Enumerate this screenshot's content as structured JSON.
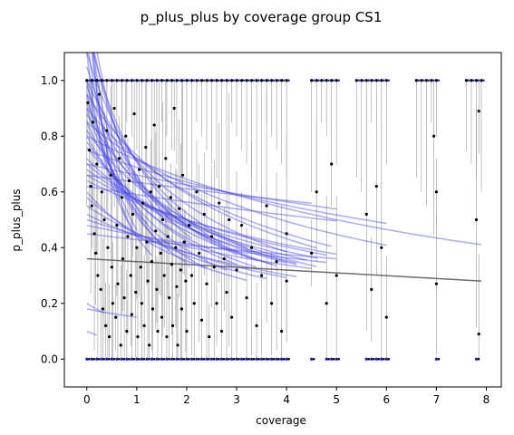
{
  "chart_data": {
    "type": "scatter",
    "title": "p_plus_plus by coverage group CS1",
    "xlabel": "coverage",
    "ylabel": "p_plus_plus",
    "xlim": [
      -0.45,
      8.3
    ],
    "ylim": [
      -0.1,
      1.1
    ],
    "x_ticks": [
      0,
      1,
      2,
      3,
      4,
      5,
      6,
      7,
      8
    ],
    "y_ticks": [
      0.0,
      0.2,
      0.4,
      0.6,
      0.8,
      1.0
    ],
    "grid": false,
    "legend": "none",
    "colors": {
      "points": "#000000",
      "error_bars": "#999999",
      "fit_lines": "#4444ee",
      "zero_markers": "#1a1acc",
      "reference_line": "#555555"
    },
    "reference_line": {
      "x": [
        0.0,
        7.9
      ],
      "y": [
        0.36,
        0.28
      ]
    },
    "points_at_one_x": [
      0.0,
      0.1,
      0.2,
      0.3,
      0.4,
      0.5,
      0.6,
      0.7,
      0.8,
      0.9,
      1.0,
      1.1,
      1.2,
      1.3,
      1.4,
      1.5,
      1.6,
      1.7,
      1.8,
      1.9,
      2.0,
      2.1,
      2.2,
      2.3,
      2.4,
      2.5,
      2.6,
      2.7,
      2.8,
      2.9,
      3.0,
      3.1,
      3.2,
      3.3,
      3.4,
      3.5,
      3.6,
      3.7,
      3.8,
      3.9,
      4.0,
      4.5,
      4.6,
      4.7,
      4.8,
      4.9,
      5.0,
      5.4,
      5.5,
      5.6,
      5.7,
      5.8,
      5.9,
      6.0,
      6.6,
      6.7,
      6.8,
      6.9,
      7.0,
      7.6,
      7.7,
      7.8,
      7.9
    ],
    "points_at_zero_x": [
      0.0,
      0.1,
      0.2,
      0.3,
      0.4,
      0.5,
      0.6,
      0.7,
      0.8,
      0.9,
      1.0,
      1.1,
      1.2,
      1.3,
      1.4,
      1.5,
      1.6,
      1.7,
      1.8,
      1.9,
      2.0,
      2.1,
      2.2,
      2.3,
      2.4,
      2.5,
      2.6,
      2.7,
      2.8,
      2.9,
      3.0,
      3.1,
      3.2,
      3.3,
      3.4,
      3.5,
      3.6,
      3.7,
      3.8,
      3.9,
      4.0,
      4.5,
      4.8,
      4.9,
      5.0,
      5.6,
      5.7,
      5.8,
      5.9,
      6.0,
      7.0,
      7.8
    ],
    "scatter_points": [
      {
        "x": 0.02,
        "y": 0.92
      },
      {
        "x": 0.05,
        "y": 0.75
      },
      {
        "x": 0.08,
        "y": 0.62
      },
      {
        "x": 0.1,
        "y": 0.55
      },
      {
        "x": 0.12,
        "y": 0.85
      },
      {
        "x": 0.15,
        "y": 0.45
      },
      {
        "x": 0.18,
        "y": 0.38
      },
      {
        "x": 0.2,
        "y": 0.7
      },
      {
        "x": 0.22,
        "y": 0.3
      },
      {
        "x": 0.25,
        "y": 0.95
      },
      {
        "x": 0.28,
        "y": 0.25
      },
      {
        "x": 0.3,
        "y": 0.6
      },
      {
        "x": 0.32,
        "y": 0.18
      },
      {
        "x": 0.35,
        "y": 0.5
      },
      {
        "x": 0.38,
        "y": 0.12
      },
      {
        "x": 0.4,
        "y": 0.82
      },
      {
        "x": 0.42,
        "y": 0.4
      },
      {
        "x": 0.45,
        "y": 0.08
      },
      {
        "x": 0.48,
        "y": 0.66
      },
      {
        "x": 0.5,
        "y": 0.33
      },
      {
        "x": 0.52,
        "y": 0.2
      },
      {
        "x": 0.55,
        "y": 0.9
      },
      {
        "x": 0.58,
        "y": 0.15
      },
      {
        "x": 0.6,
        "y": 0.48
      },
      {
        "x": 0.62,
        "y": 0.27
      },
      {
        "x": 0.65,
        "y": 0.72
      },
      {
        "x": 0.68,
        "y": 0.05
      },
      {
        "x": 0.7,
        "y": 0.58
      },
      {
        "x": 0.72,
        "y": 0.36
      },
      {
        "x": 0.75,
        "y": 0.22
      },
      {
        "x": 0.78,
        "y": 0.8
      },
      {
        "x": 0.8,
        "y": 0.1
      },
      {
        "x": 0.82,
        "y": 0.44
      },
      {
        "x": 0.85,
        "y": 0.64
      },
      {
        "x": 0.88,
        "y": 0.3
      },
      {
        "x": 0.9,
        "y": 0.16
      },
      {
        "x": 0.92,
        "y": 0.52
      },
      {
        "x": 0.95,
        "y": 0.88
      },
      {
        "x": 0.98,
        "y": 0.24
      },
      {
        "x": 1.0,
        "y": 0.4
      },
      {
        "x": 1.02,
        "y": 0.08
      },
      {
        "x": 1.05,
        "y": 0.68
      },
      {
        "x": 1.08,
        "y": 0.33
      },
      {
        "x": 1.1,
        "y": 0.2
      },
      {
        "x": 1.12,
        "y": 0.56
      },
      {
        "x": 1.15,
        "y": 0.12
      },
      {
        "x": 1.18,
        "y": 0.76
      },
      {
        "x": 1.2,
        "y": 0.42
      },
      {
        "x": 1.22,
        "y": 0.28
      },
      {
        "x": 1.25,
        "y": 0.05
      },
      {
        "x": 1.28,
        "y": 0.6
      },
      {
        "x": 1.3,
        "y": 0.35
      },
      {
        "x": 1.32,
        "y": 0.18
      },
      {
        "x": 1.35,
        "y": 0.84
      },
      {
        "x": 1.38,
        "y": 0.46
      },
      {
        "x": 1.4,
        "y": 0.25
      },
      {
        "x": 1.42,
        "y": 0.1
      },
      {
        "x": 1.45,
        "y": 0.62
      },
      {
        "x": 1.48,
        "y": 0.38
      },
      {
        "x": 1.5,
        "y": 0.15
      },
      {
        "x": 1.52,
        "y": 0.5
      },
      {
        "x": 1.55,
        "y": 0.3
      },
      {
        "x": 1.58,
        "y": 0.72
      },
      {
        "x": 1.6,
        "y": 0.08
      },
      {
        "x": 1.62,
        "y": 0.44
      },
      {
        "x": 1.65,
        "y": 0.22
      },
      {
        "x": 1.68,
        "y": 0.58
      },
      {
        "x": 1.7,
        "y": 0.34
      },
      {
        "x": 1.72,
        "y": 0.12
      },
      {
        "x": 1.75,
        "y": 0.9
      },
      {
        "x": 1.78,
        "y": 0.4
      },
      {
        "x": 1.8,
        "y": 0.26
      },
      {
        "x": 1.82,
        "y": 0.05
      },
      {
        "x": 1.85,
        "y": 0.54
      },
      {
        "x": 1.88,
        "y": 0.32
      },
      {
        "x": 1.9,
        "y": 0.18
      },
      {
        "x": 1.92,
        "y": 0.66
      },
      {
        "x": 1.95,
        "y": 0.42
      },
      {
        "x": 1.98,
        "y": 0.28
      },
      {
        "x": 2.0,
        "y": 0.1
      },
      {
        "x": 2.05,
        "y": 0.48
      },
      {
        "x": 2.1,
        "y": 0.3
      },
      {
        "x": 2.15,
        "y": 0.2
      },
      {
        "x": 2.2,
        "y": 0.6
      },
      {
        "x": 2.25,
        "y": 0.38
      },
      {
        "x": 2.3,
        "y": 0.14
      },
      {
        "x": 2.35,
        "y": 0.52
      },
      {
        "x": 2.4,
        "y": 0.27
      },
      {
        "x": 2.45,
        "y": 0.08
      },
      {
        "x": 2.5,
        "y": 0.44
      },
      {
        "x": 2.55,
        "y": 0.33
      },
      {
        "x": 2.6,
        "y": 0.2
      },
      {
        "x": 2.65,
        "y": 0.56
      },
      {
        "x": 2.7,
        "y": 0.1
      },
      {
        "x": 2.75,
        "y": 0.36
      },
      {
        "x": 2.8,
        "y": 0.24
      },
      {
        "x": 2.85,
        "y": 0.5
      },
      {
        "x": 2.9,
        "y": 0.15
      },
      {
        "x": 3.0,
        "y": 0.32
      },
      {
        "x": 3.1,
        "y": 0.48
      },
      {
        "x": 3.2,
        "y": 0.22
      },
      {
        "x": 3.3,
        "y": 0.4
      },
      {
        "x": 3.4,
        "y": 0.12
      },
      {
        "x": 3.5,
        "y": 0.3
      },
      {
        "x": 3.6,
        "y": 0.55
      },
      {
        "x": 3.7,
        "y": 0.2
      },
      {
        "x": 3.8,
        "y": 0.35
      },
      {
        "x": 3.9,
        "y": 0.1
      },
      {
        "x": 4.0,
        "y": 0.28
      },
      {
        "x": 4.0,
        "y": 0.45
      },
      {
        "x": 4.5,
        "y": 0.38
      },
      {
        "x": 4.6,
        "y": 0.6
      },
      {
        "x": 4.8,
        "y": 0.2
      },
      {
        "x": 4.9,
        "y": 0.7
      },
      {
        "x": 5.0,
        "y": 0.3
      },
      {
        "x": 5.6,
        "y": 0.52
      },
      {
        "x": 5.7,
        "y": 0.25
      },
      {
        "x": 5.8,
        "y": 0.62
      },
      {
        "x": 5.9,
        "y": 0.4
      },
      {
        "x": 6.0,
        "y": 0.15
      },
      {
        "x": 6.95,
        "y": 0.8
      },
      {
        "x": 7.0,
        "y": 0.6
      },
      {
        "x": 7.0,
        "y": 0.27
      },
      {
        "x": 7.8,
        "y": 0.5
      },
      {
        "x": 7.85,
        "y": 0.89
      },
      {
        "x": 7.85,
        "y": 0.09
      }
    ],
    "fit_curves": [
      {
        "a": 1.35,
        "b": 1.1,
        "xmax": 1.6
      },
      {
        "a": 1.25,
        "b": 0.9,
        "xmax": 2.1
      },
      {
        "a": 1.2,
        "b": 0.7,
        "xmax": 2.7
      },
      {
        "a": 1.1,
        "b": 0.55,
        "xmax": 3.2
      },
      {
        "a": 1.0,
        "b": 0.4,
        "xmax": 4.0
      },
      {
        "a": 0.95,
        "b": 0.3,
        "xmax": 4.6
      },
      {
        "a": 0.9,
        "b": 0.25,
        "xmax": 4.9
      },
      {
        "a": 0.85,
        "b": 0.18,
        "xmax": 6.0
      },
      {
        "a": 0.8,
        "b": 0.12,
        "xmax": 7.9
      },
      {
        "a": 0.75,
        "b": 0.09,
        "xmax": 6.0
      },
      {
        "a": 0.7,
        "b": 0.06,
        "xmax": 5.0
      },
      {
        "a": 0.66,
        "b": 0.04,
        "xmax": 4.5
      },
      {
        "a": 0.62,
        "b": 0.05,
        "xmax": 5.0
      },
      {
        "a": 1.3,
        "b": 1.4,
        "xmax": 1.2
      },
      {
        "a": 1.15,
        "b": 1.2,
        "xmax": 1.5
      },
      {
        "a": 1.0,
        "b": 0.95,
        "xmax": 2.0
      },
      {
        "a": 0.95,
        "b": 0.8,
        "xmax": 2.4
      },
      {
        "a": 0.9,
        "b": 0.65,
        "xmax": 2.8
      },
      {
        "a": 0.85,
        "b": 0.5,
        "xmax": 3.0
      },
      {
        "a": 0.8,
        "b": 0.42,
        "xmax": 3.4
      },
      {
        "a": 0.78,
        "b": 0.35,
        "xmax": 3.7
      },
      {
        "a": 0.76,
        "b": 0.3,
        "xmax": 4.0
      },
      {
        "a": 0.72,
        "b": 0.26,
        "xmax": 4.2
      },
      {
        "a": 0.7,
        "b": 0.22,
        "xmax": 4.4
      },
      {
        "a": 0.68,
        "b": 0.19,
        "xmax": 4.6
      },
      {
        "a": 0.66,
        "b": 0.16,
        "xmax": 4.8
      },
      {
        "a": 0.64,
        "b": 0.14,
        "xmax": 5.0
      },
      {
        "a": 0.6,
        "b": 0.35,
        "xmax": 3.2
      },
      {
        "a": 0.58,
        "b": 0.28,
        "xmax": 3.6
      },
      {
        "a": 0.55,
        "b": 0.22,
        "xmax": 4.0
      },
      {
        "a": 0.52,
        "b": 0.18,
        "xmax": 4.2
      },
      {
        "a": 0.5,
        "b": 0.12,
        "xmax": 4.5
      },
      {
        "a": 0.48,
        "b": 0.08,
        "xmax": 4.8
      },
      {
        "a": 0.45,
        "b": 0.05,
        "xmax": 5.0
      },
      {
        "a": 1.05,
        "b": 0.6,
        "xmax": 3.0
      },
      {
        "a": 0.98,
        "b": 0.52,
        "xmax": 3.4
      },
      {
        "a": 0.92,
        "b": 0.46,
        "xmax": 3.8
      },
      {
        "a": 0.88,
        "b": 0.38,
        "xmax": 4.2
      },
      {
        "a": 0.82,
        "b": 0.32,
        "xmax": 4.6
      },
      {
        "a": 0.2,
        "b": 0.6,
        "xmax": 0.35
      },
      {
        "a": 0.1,
        "b": 0.8,
        "xmax": 0.2
      },
      {
        "a": 0.18,
        "b": 0.2,
        "xmax": 1.0
      },
      {
        "a": 1.4,
        "b": 2.2,
        "xmax": 0.9
      },
      {
        "a": 1.3,
        "b": 1.8,
        "xmax": 1.0
      },
      {
        "a": 1.1,
        "b": 1.5,
        "xmax": 1.3
      }
    ]
  }
}
